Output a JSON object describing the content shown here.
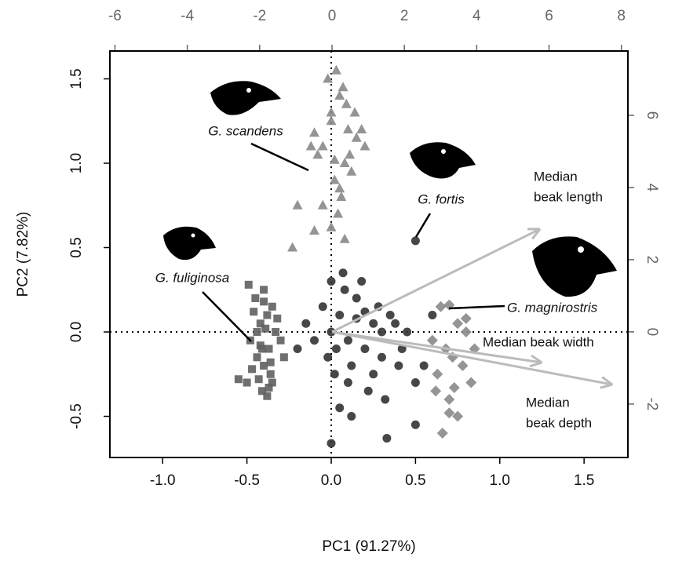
{
  "chart_data": {
    "type": "scatter",
    "xlabel": "PC1 (91.27%)",
    "ylabel": "PC2 (7.82%)",
    "xlim": [
      -1.313,
      1.76
    ],
    "ylim": [
      -0.744,
      1.665
    ],
    "xticks": [
      {
        "value": -1.0,
        "label": "-1.0"
      },
      -0.5,
      {
        "value": 0.0,
        "label": "0.0"
      },
      0.5,
      {
        "value": 1.0,
        "label": "1.0"
      },
      1.5
    ],
    "yticks": [
      -0.5,
      {
        "value": 0.0,
        "label": "0.0"
      },
      0.5,
      {
        "value": 1.0,
        "label": "1.0"
      },
      1.5
    ],
    "x2lim": [
      -6.14,
      8.18
    ],
    "y2lim": [
      -3.48,
      7.78
    ],
    "x2ticks": [
      -6,
      -4,
      -2,
      0,
      2,
      4,
      6,
      8
    ],
    "y2ticks": [
      -2,
      0,
      2,
      4,
      6
    ],
    "series": [
      {
        "name": "G. fuliginosa",
        "color": "#5f5f5f",
        "marker": "square",
        "x": [
          -0.45,
          -0.4,
          -0.38,
          -0.35,
          -0.42,
          -0.48,
          -0.33,
          -0.37,
          -0.44,
          -0.4,
          -0.36,
          -0.5,
          -0.3,
          -0.41,
          -0.46,
          -0.39,
          -0.35,
          -0.43,
          -0.47,
          -0.38,
          -0.32,
          -0.42,
          -0.4,
          -0.36,
          -0.44,
          -0.55,
          -0.28,
          -0.49,
          -0.37,
          -0.41
        ],
        "y": [
          0.2,
          0.25,
          0.1,
          0.15,
          0.05,
          -0.05,
          0.0,
          -0.1,
          -0.15,
          -0.2,
          -0.25,
          -0.3,
          -0.05,
          -0.35,
          0.12,
          0.02,
          -0.3,
          -0.28,
          -0.22,
          -0.38,
          0.08,
          -0.08,
          0.18,
          -0.18,
          0.0,
          -0.28,
          -0.15,
          0.28,
          -0.33,
          -0.1
        ]
      },
      {
        "name": "G. scandens",
        "color": "#888888",
        "marker": "triangle",
        "x": [
          -0.05,
          0.0,
          0.05,
          0.1,
          -0.02,
          0.08,
          0.15,
          -0.08,
          0.02,
          0.06,
          0.12,
          -0.1,
          0.04,
          0.0,
          0.09,
          0.2,
          -0.05,
          0.03,
          0.07,
          0.11,
          -0.2,
          -0.23,
          0.0,
          0.05,
          0.18,
          -0.1,
          0.14,
          0.02,
          -0.12,
          0.08
        ],
        "y": [
          1.1,
          1.3,
          1.4,
          1.2,
          1.5,
          1.0,
          1.15,
          1.05,
          0.9,
          0.8,
          0.95,
          0.6,
          0.7,
          1.25,
          1.35,
          1.1,
          0.75,
          1.55,
          1.45,
          1.05,
          0.75,
          0.5,
          0.62,
          0.85,
          1.2,
          1.18,
          1.3,
          1.02,
          1.1,
          0.55
        ]
      },
      {
        "name": "G. fortis",
        "color": "#333333",
        "marker": "circle",
        "x": [
          0.0,
          0.05,
          0.1,
          -0.05,
          0.15,
          0.2,
          0.25,
          0.3,
          0.35,
          0.4,
          0.45,
          0.5,
          -0.1,
          -0.15,
          0.02,
          0.08,
          0.12,
          0.18,
          0.22,
          0.28,
          0.32,
          0.38,
          0.42,
          0.55,
          0.6,
          -0.2,
          0.0,
          0.05,
          0.1,
          0.15,
          0.2,
          0.25,
          0.03,
          -0.02,
          0.3,
          0.33,
          0.5,
          0.0,
          0.07,
          0.12,
          0.5
        ],
        "y": [
          0.0,
          0.1,
          -0.05,
          0.15,
          0.2,
          -0.1,
          0.05,
          -0.15,
          0.1,
          -0.2,
          0.0,
          -0.3,
          -0.05,
          0.05,
          -0.25,
          0.25,
          -0.2,
          0.3,
          -0.35,
          0.15,
          -0.4,
          0.05,
          -0.1,
          -0.2,
          0.1,
          -0.1,
          0.3,
          -0.45,
          -0.3,
          0.08,
          0.12,
          -0.25,
          -0.1,
          -0.15,
          0.0,
          -0.63,
          -0.55,
          -0.66,
          0.35,
          -0.5,
          0.54
        ]
      },
      {
        "name": "G. magnirostris",
        "color": "#8a8a8a",
        "marker": "diamond",
        "x": [
          0.65,
          0.7,
          0.75,
          0.8,
          0.6,
          0.68,
          0.72,
          0.78,
          0.83,
          0.63,
          0.7,
          0.75,
          0.66,
          0.8,
          0.73,
          0.7,
          0.85,
          0.62
        ],
        "y": [
          0.15,
          0.16,
          0.05,
          0.08,
          -0.05,
          -0.1,
          -0.15,
          -0.2,
          -0.3,
          -0.25,
          -0.4,
          -0.5,
          -0.6,
          0.0,
          -0.33,
          -0.48,
          -0.1,
          -0.35
        ]
      }
    ],
    "loadings": [
      {
        "label": [
          "Median",
          "beak length"
        ],
        "x": 5.75,
        "y": 2.85
      },
      {
        "label": [
          "Median beak width"
        ],
        "x": 5.8,
        "y": -0.85
      },
      {
        "label": [
          "Median",
          "beak depth"
        ],
        "x": 7.75,
        "y": -1.46
      }
    ]
  }
}
